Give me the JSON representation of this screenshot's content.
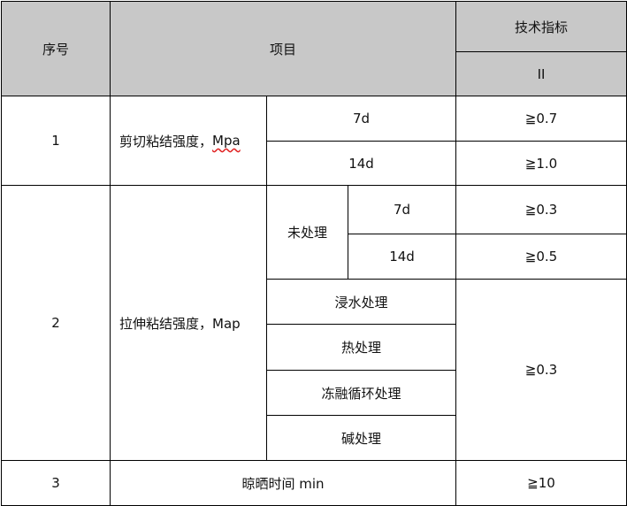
{
  "header": {
    "seq": "序号",
    "item": "项目",
    "tech": "技术指标",
    "grade": "II"
  },
  "rows": [
    {
      "seq": "1",
      "item": "剪切粘结强度，",
      "unit": "Mpa",
      "sub": [
        {
          "label": "7d",
          "value": "≧0.7"
        },
        {
          "label": "14d",
          "value": "≧1.0"
        }
      ]
    },
    {
      "seq": "2",
      "item": "拉伸粘结强度，Map",
      "untreated": "未处理",
      "untreated_sub": [
        {
          "label": "7d",
          "value": "≧0.3"
        },
        {
          "label": "14d",
          "value": "≧0.5"
        }
      ],
      "treatments": [
        "浸水处理",
        "热处理",
        "冻融循环处理",
        "碱处理"
      ],
      "treatments_value": "≧0.3"
    },
    {
      "seq": "3",
      "item": "晾晒时间 min",
      "value": "≧10"
    }
  ]
}
